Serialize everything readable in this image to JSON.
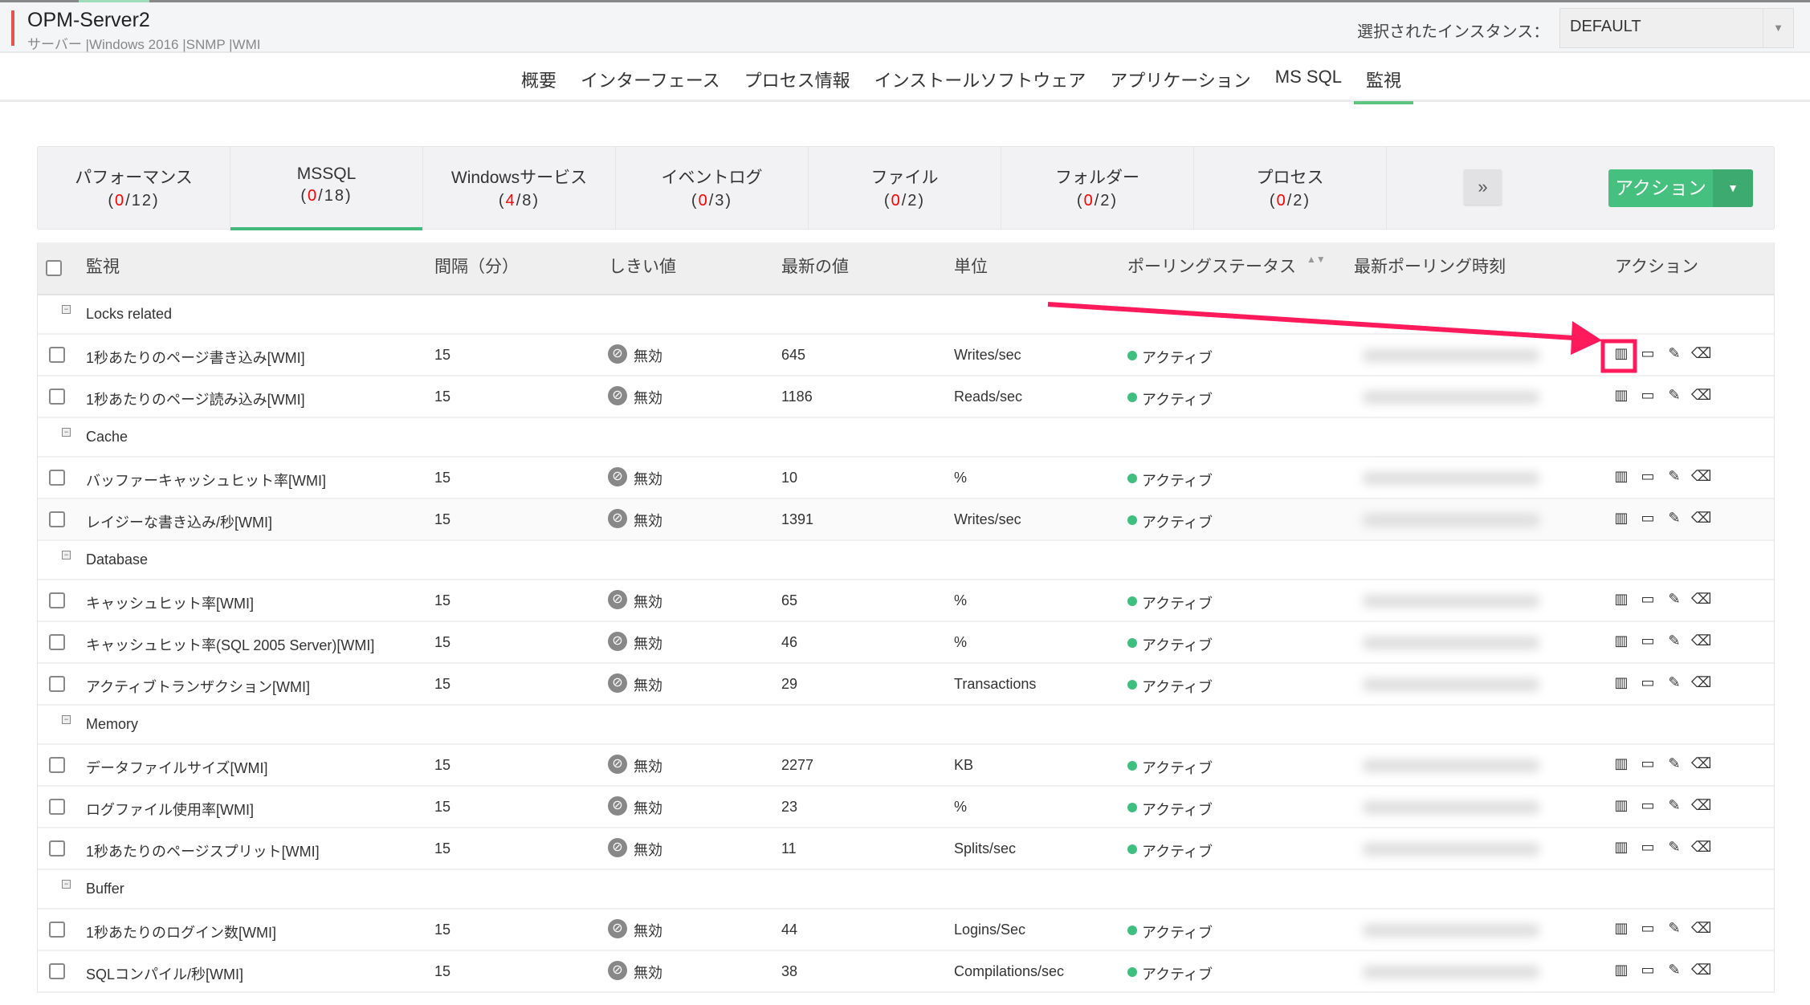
{
  "header": {
    "title": "OPM-Server2",
    "subtitle": "サーバー |Windows 2016 |SNMP |WMI",
    "instance_label": "選択されたインスタンス：",
    "instance_value": "DEFAULT"
  },
  "nav": [
    "概要",
    "インターフェース",
    "プロセス情報",
    "インストールソフトウェア",
    "アプリケーション",
    "MS SQL",
    "監視"
  ],
  "nav_active": "監視",
  "tabs": [
    {
      "label": "パフォーマンス",
      "down": "0",
      "total": "12"
    },
    {
      "label": "MSSQL",
      "down": "0",
      "total": "18"
    },
    {
      "label": "Windowsサービス",
      "down": "4",
      "total": "8"
    },
    {
      "label": "イベントログ",
      "down": "0",
      "total": "3"
    },
    {
      "label": "ファイル",
      "down": "0",
      "total": "2"
    },
    {
      "label": "フォルダー",
      "down": "0",
      "total": "2"
    },
    {
      "label": "プロセス",
      "down": "0",
      "total": "2"
    }
  ],
  "tabs_active": "MSSQL",
  "more_label": "»",
  "action_label": "アクション",
  "columns": [
    "監視",
    "間隔（分）",
    "しきい値",
    "最新の値",
    "単位",
    "ポーリングステータス",
    "最新ポーリング時刻",
    "アクション"
  ],
  "rows": [
    {
      "group": "Locks related"
    },
    {
      "name": "1秒あたりのページ書き込み[WMI]",
      "interval": "15",
      "threshold": "無効",
      "value": "645",
      "unit": "Writes/sec",
      "status": "アクティブ"
    },
    {
      "name": "1秒あたりのページ読み込み[WMI]",
      "interval": "15",
      "threshold": "無効",
      "value": "1186",
      "unit": "Reads/sec",
      "status": "アクティブ"
    },
    {
      "group": "Cache"
    },
    {
      "name": "バッファーキャッシュヒット率[WMI]",
      "interval": "15",
      "threshold": "無効",
      "value": "10",
      "unit": "%",
      "status": "アクティブ"
    },
    {
      "name": "レイジーな書き込み/秒[WMI]",
      "interval": "15",
      "threshold": "無効",
      "value": "1391",
      "unit": "Writes/sec",
      "status": "アクティブ"
    },
    {
      "group": "Database"
    },
    {
      "name": "キャッシュヒット率[WMI]",
      "interval": "15",
      "threshold": "無効",
      "value": "65",
      "unit": "%",
      "status": "アクティブ"
    },
    {
      "name": "キャッシュヒット率(SQL 2005 Server)[WMI]",
      "interval": "15",
      "threshold": "無効",
      "value": "46",
      "unit": "%",
      "status": "アクティブ"
    },
    {
      "name": "アクティブトランザクション[WMI]",
      "interval": "15",
      "threshold": "無効",
      "value": "29",
      "unit": "Transactions",
      "status": "アクティブ"
    },
    {
      "group": "Memory"
    },
    {
      "name": "データファイルサイズ[WMI]",
      "interval": "15",
      "threshold": "無効",
      "value": "2277",
      "unit": "KB",
      "status": "アクティブ"
    },
    {
      "name": "ログファイル使用率[WMI]",
      "interval": "15",
      "threshold": "無効",
      "value": "23",
      "unit": "%",
      "status": "アクティブ"
    },
    {
      "name": "1秒あたりのページスプリット[WMI]",
      "interval": "15",
      "threshold": "無効",
      "value": "11",
      "unit": "Splits/sec",
      "status": "アクティブ"
    },
    {
      "group": "Buffer"
    },
    {
      "name": "1秒あたりのログイン数[WMI]",
      "interval": "15",
      "threshold": "無効",
      "value": "44",
      "unit": "Logins/Sec",
      "status": "アクティブ"
    },
    {
      "name": "SQLコンパイル/秒[WMI]",
      "interval": "15",
      "threshold": "無効",
      "value": "38",
      "unit": "Compilations/sec",
      "status": "アクティブ"
    }
  ],
  "row_icons": [
    "chart-icon",
    "monitor-icon",
    "edit-icon",
    "delete-icon"
  ],
  "colors": {
    "accent": "#46c07f",
    "status_active": "#3fbf7f",
    "annotation": "#ff1a5b",
    "down_count": "#ff0000"
  }
}
